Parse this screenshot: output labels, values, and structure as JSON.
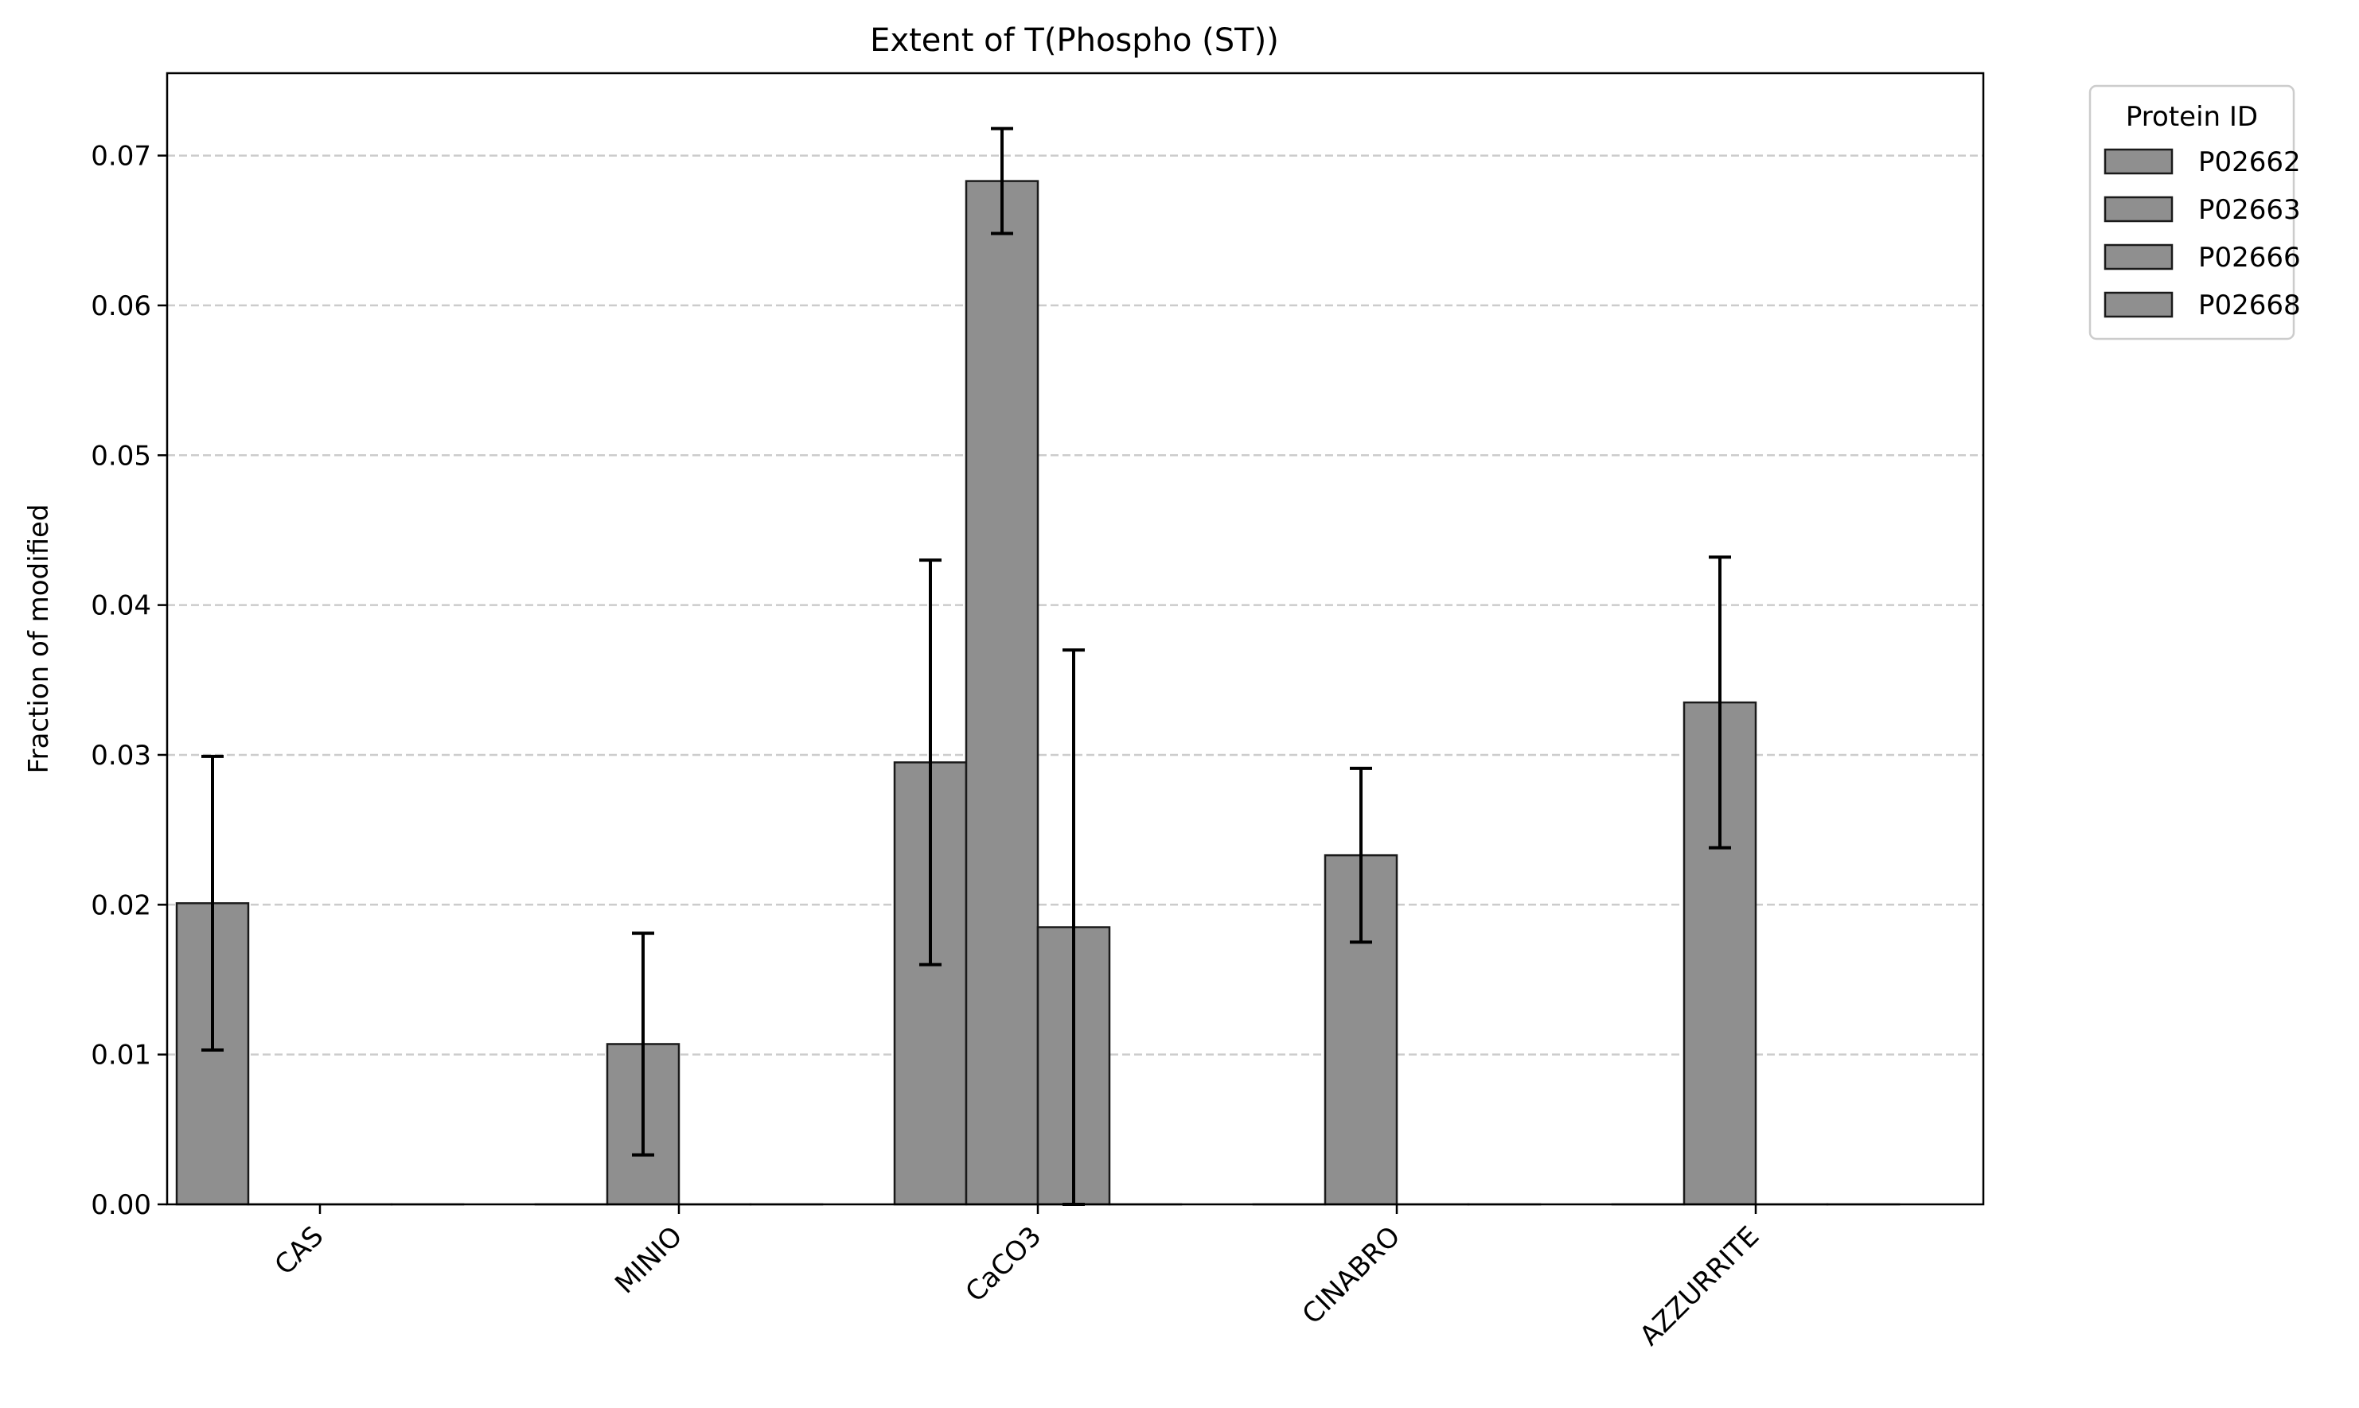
{
  "chart_data": {
    "type": "bar",
    "title": "Extent of T(Phospho (ST))",
    "xlabel": "",
    "ylabel": "Fraction of modified",
    "ylim": [
      0,
      0.0755
    ],
    "yticks": [
      "0.00",
      "0.01",
      "0.02",
      "0.03",
      "0.04",
      "0.05",
      "0.06",
      "0.07"
    ],
    "categories": [
      "CAS",
      "MINIO",
      "CaCO3",
      "CINABRO",
      "AZZURRITE"
    ],
    "grid": "y-dashed",
    "legend_placement": "outside-top-right",
    "legend_title": "Protein ID",
    "bar_color": "#8f8f8f",
    "edge_color": "#1a1a1a",
    "series": [
      {
        "name": "P02662",
        "values": [
          0.0201,
          0.0,
          0.0295,
          0.0,
          0.0
        ],
        "errors": [
          0.0098,
          0.0,
          0.0135,
          0.0,
          0.0
        ]
      },
      {
        "name": "P02663",
        "values": [
          0.0,
          0.0107,
          0.0683,
          0.0233,
          0.0335
        ],
        "errors": [
          0.0,
          0.0074,
          0.0035,
          0.0058,
          0.0097
        ]
      },
      {
        "name": "P02666",
        "values": [
          0.0,
          0.0,
          0.0185,
          0.0,
          0.0
        ],
        "errors": [
          0.0,
          0.0,
          0.0185,
          0.0,
          0.0
        ]
      },
      {
        "name": "P02668",
        "values": [
          0.0,
          0.0,
          0.0,
          0.0,
          0.0
        ],
        "errors": [
          0.0,
          0.0,
          0.0,
          0.0,
          0.0
        ]
      }
    ]
  }
}
